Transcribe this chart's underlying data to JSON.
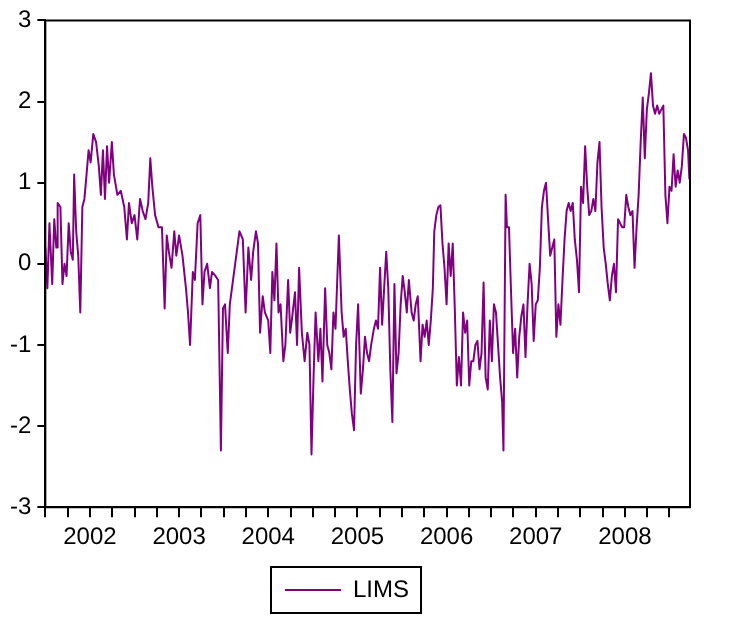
{
  "chart_data": {
    "type": "line",
    "legend": "bottom",
    "marker": "none",
    "line_style": "solid",
    "grid": false,
    "xlim": [
      2002,
      2009.23
    ],
    "xticks": [
      {
        "value": 2002,
        "label": null
      },
      {
        "value": 2002.25,
        "label": null
      },
      {
        "value": 2002.5,
        "label": "2002"
      },
      {
        "value": 2002.75,
        "label": null
      },
      {
        "value": 2003,
        "label": null
      },
      {
        "value": 2003.25,
        "label": null
      },
      {
        "value": 2003.5,
        "label": "2003"
      },
      {
        "value": 2003.75,
        "label": null
      },
      {
        "value": 2004,
        "label": null
      },
      {
        "value": 2004.25,
        "label": null
      },
      {
        "value": 2004.5,
        "label": "2004"
      },
      {
        "value": 2004.75,
        "label": null
      },
      {
        "value": 2005,
        "label": null
      },
      {
        "value": 2005.25,
        "label": null
      },
      {
        "value": 2005.5,
        "label": "2005"
      },
      {
        "value": 2005.75,
        "label": null
      },
      {
        "value": 2006,
        "label": null
      },
      {
        "value": 2006.25,
        "label": null
      },
      {
        "value": 2006.5,
        "label": "2006"
      },
      {
        "value": 2006.75,
        "label": null
      },
      {
        "value": 2007,
        "label": null
      },
      {
        "value": 2007.25,
        "label": null
      },
      {
        "value": 2007.5,
        "label": "2007"
      },
      {
        "value": 2007.75,
        "label": null
      },
      {
        "value": 2008,
        "label": null
      },
      {
        "value": 2008.25,
        "label": null
      },
      {
        "value": 2008.5,
        "label": "2008"
      },
      {
        "value": 2008.75,
        "label": null
      },
      {
        "value": 2009,
        "label": null
      }
    ],
    "ylim": [
      -3,
      3
    ],
    "yticks": [
      -3,
      -2,
      -1,
      0,
      1,
      2,
      3
    ],
    "series": [
      {
        "name": "LIMS",
        "color": "#800080",
        "x": [
          2002.0,
          2002.023,
          2002.046,
          2002.077,
          2002.1,
          2002.123,
          2002.138,
          2002.169,
          2002.192,
          2002.215,
          2002.238,
          2002.262,
          2002.285,
          2002.308,
          2002.323,
          2002.346,
          2002.369,
          2002.392,
          2002.415,
          2002.438,
          2002.462,
          2002.485,
          2002.508,
          2002.538,
          2002.569,
          2002.6,
          2002.623,
          2002.646,
          2002.669,
          2002.692,
          2002.715,
          2002.746,
          2002.769,
          2002.808,
          2002.846,
          2002.885,
          2002.915,
          2002.938,
          2002.969,
          2003.0,
          2003.031,
          2003.062,
          2003.092,
          2003.123,
          2003.154,
          2003.177,
          2003.2,
          2003.231,
          2003.269,
          2003.308,
          2003.338,
          2003.362,
          2003.385,
          2003.415,
          2003.446,
          2003.469,
          2003.5,
          2003.538,
          2003.577,
          2003.6,
          2003.623,
          2003.654,
          2003.677,
          2003.708,
          2003.738,
          2003.762,
          2003.785,
          2003.815,
          2003.846,
          2003.869,
          2003.908,
          2003.938,
          2003.969,
          2003.992,
          2004.015,
          2004.046,
          2004.069,
          2004.177,
          2004.215,
          2004.246,
          2004.277,
          2004.308,
          2004.331,
          2004.362,
          2004.385,
          2004.408,
          2004.438,
          2004.462,
          2004.5,
          2004.523,
          2004.546,
          2004.569,
          2004.592,
          2004.615,
          2004.638,
          2004.669,
          2004.692,
          2004.723,
          2004.746,
          2004.769,
          2004.8,
          2004.823,
          2004.846,
          2004.877,
          2004.908,
          2004.938,
          2004.962,
          2004.985,
          2005.008,
          2005.031,
          2005.062,
          2005.085,
          2005.108,
          2005.138,
          2005.162,
          2005.185,
          2005.208,
          2005.231,
          2005.254,
          2005.277,
          2005.292,
          2005.323,
          2005.346,
          2005.369,
          2005.392,
          2005.415,
          2005.438,
          2005.462,
          2005.485,
          2005.508,
          2005.538,
          2005.562,
          2005.585,
          2005.608,
          2005.631,
          2005.654,
          2005.685,
          2005.708,
          2005.731,
          2005.754,
          2005.777,
          2005.8,
          2005.823,
          2005.846,
          2005.869,
          2005.892,
          2005.915,
          2005.938,
          2005.962,
          2005.985,
          2006.008,
          2006.031,
          2006.054,
          2006.077,
          2006.108,
          2006.131,
          2006.154,
          2006.177,
          2006.208,
          2006.231,
          2006.254,
          2006.277,
          2006.3,
          2006.323,
          2006.346,
          2006.362,
          2006.385,
          2006.408,
          2006.431,
          2006.454,
          2006.477,
          2006.5,
          2006.523,
          2006.546,
          2006.569,
          2006.592,
          2006.615,
          2006.638,
          2006.662,
          2006.685,
          2006.708,
          2006.731,
          2006.754,
          2006.777,
          2006.8,
          2006.823,
          2006.846,
          2006.869,
          2006.892,
          2006.915,
          2006.938,
          2006.962,
          2006.985,
          2007.008,
          2007.031,
          2007.054,
          2007.077,
          2007.1,
          2007.123,
          2007.138,
          2007.162,
          2007.177,
          2007.2,
          2007.223,
          2007.246,
          2007.269,
          2007.292,
          2007.315,
          2007.338,
          2007.362,
          2007.385,
          2007.408,
          2007.431,
          2007.454,
          2007.477,
          2007.5,
          2007.523,
          2007.546,
          2007.569,
          2007.592,
          2007.615,
          2007.638,
          2007.662,
          2007.685,
          2007.708,
          2007.731,
          2007.754,
          2007.777,
          2007.8,
          2007.823,
          2007.846,
          2007.869,
          2007.892,
          2007.915,
          2007.938,
          2007.962,
          2007.985,
          2008.008,
          2008.031,
          2008.054,
          2008.077,
          2008.1,
          2008.123,
          2008.146,
          2008.169,
          2008.192,
          2008.215,
          2008.238,
          2008.262,
          2008.285,
          2008.308,
          2008.331,
          2008.354,
          2008.377,
          2008.4,
          2008.423,
          2008.446,
          2008.469,
          2008.492,
          2008.515,
          2008.538,
          2008.562,
          2008.585,
          2008.608,
          2008.631,
          2008.654,
          2008.677,
          2008.7,
          2008.723,
          2008.746,
          2008.769,
          2008.792,
          2008.815,
          2008.838,
          2008.862,
          2008.885,
          2008.908,
          2008.931,
          2008.954,
          2008.977,
          2009.0,
          2009.023,
          2009.046,
          2009.069,
          2009.092,
          2009.115,
          2009.138,
          2009.162,
          2009.185,
          2009.208,
          2009.223
        ],
        "values": [
          0.2,
          -0.3,
          0.5,
          -0.25,
          0.55,
          0.2,
          0.75,
          0.7,
          -0.25,
          0,
          -0.15,
          0.5,
          0.15,
          0.05,
          1.1,
          0.4,
          0.1,
          -0.6,
          0.7,
          0.8,
          1.1,
          1.4,
          1.25,
          1.6,
          1.5,
          1.2,
          0.85,
          1.4,
          0.8,
          1.45,
          1.0,
          1.5,
          1.1,
          0.85,
          0.9,
          0.7,
          0.3,
          0.75,
          0.5,
          0.6,
          0.3,
          0.8,
          0.65,
          0.55,
          0.75,
          1.3,
          0.95,
          0.6,
          0.45,
          0.45,
          -0.55,
          0.35,
          0.15,
          -0.05,
          0.4,
          0.1,
          0.35,
          0.1,
          -0.3,
          -0.6,
          -1.0,
          -0.1,
          -0.2,
          0.5,
          0.6,
          -0.5,
          -0.1,
          0.0,
          -0.3,
          -0.1,
          -0.15,
          -0.2,
          -2.3,
          -0.55,
          -0.5,
          -1.1,
          -0.5,
          0.4,
          0.3,
          -0.6,
          0.2,
          -0.2,
          0.15,
          0.4,
          0.25,
          -0.85,
          -0.4,
          -0.6,
          -0.7,
          -1.1,
          -0.1,
          -0.45,
          0.25,
          -0.6,
          -0.5,
          -1.2,
          -1.0,
          -0.2,
          -0.85,
          -0.65,
          -0.35,
          -1.0,
          -0.05,
          -0.85,
          -1.2,
          -0.85,
          -1.0,
          -2.35,
          -1.4,
          -0.6,
          -1.2,
          -0.8,
          -1.45,
          -0.3,
          -1.0,
          -1.1,
          -1.3,
          -0.6,
          -0.8,
          -0.1,
          0.35,
          -0.6,
          -0.9,
          -0.8,
          -1.2,
          -1.55,
          -1.85,
          -2.05,
          -1.0,
          -0.5,
          -1.6,
          -1.3,
          -0.9,
          -1.1,
          -1.2,
          -1.0,
          -0.8,
          -0.7,
          -0.8,
          -0.05,
          -0.75,
          -0.3,
          0.15,
          -0.3,
          -1.3,
          -1.95,
          -0.25,
          -1.35,
          -1.1,
          -0.5,
          -0.15,
          -0.35,
          -0.6,
          -0.2,
          -0.6,
          -0.7,
          -0.5,
          -0.4,
          -1.2,
          -0.75,
          -0.9,
          -0.7,
          -1.0,
          -0.7,
          -0.3,
          0.4,
          0.6,
          0.7,
          0.72,
          0.25,
          -0.05,
          -0.5,
          0.25,
          -0.15,
          0.25,
          -0.55,
          -1.5,
          -1.15,
          -1.5,
          -0.6,
          -0.85,
          -0.7,
          -1.5,
          -1.2,
          -1.2,
          -1.0,
          -0.95,
          -1.3,
          -1.1,
          -0.23,
          -1.4,
          -1.55,
          -0.7,
          -1.2,
          -0.5,
          -0.6,
          -1.0,
          -1.4,
          -1.7,
          -2.3,
          0.85,
          0.45,
          0.45,
          -0.35,
          -1.1,
          -0.8,
          -1.4,
          -0.9,
          -0.65,
          -0.5,
          -1.15,
          -0.5,
          0.0,
          -0.25,
          -0.95,
          -0.5,
          -0.45,
          -0.05,
          0.7,
          0.9,
          1.0,
          0.55,
          0.1,
          0.2,
          0.3,
          -0.9,
          -0.5,
          -0.75,
          -0.2,
          0.3,
          0.65,
          0.75,
          0.65,
          0.75,
          0.3,
          0.05,
          -0.35,
          0.95,
          0.75,
          1.45,
          0.95,
          0.6,
          0.65,
          0.8,
          0.65,
          1.25,
          1.5,
          0.7,
          0.2,
          0.0,
          -0.25,
          -0.45,
          -0.15,
          0.0,
          -0.35,
          0.55,
          0.5,
          0.45,
          0.45,
          0.85,
          0.7,
          0.6,
          0.65,
          -0.05,
          0.45,
          0.85,
          1.5,
          2.05,
          1.3,
          1.9,
          2.1,
          2.35,
          1.95,
          1.85,
          1.95,
          1.85,
          1.9,
          1.95,
          0.85,
          0.5,
          0.95,
          0.9,
          1.35,
          0.95,
          1.15,
          1.0,
          1.2,
          1.6,
          1.55,
          1.4,
          1.05
        ]
      }
    ]
  }
}
